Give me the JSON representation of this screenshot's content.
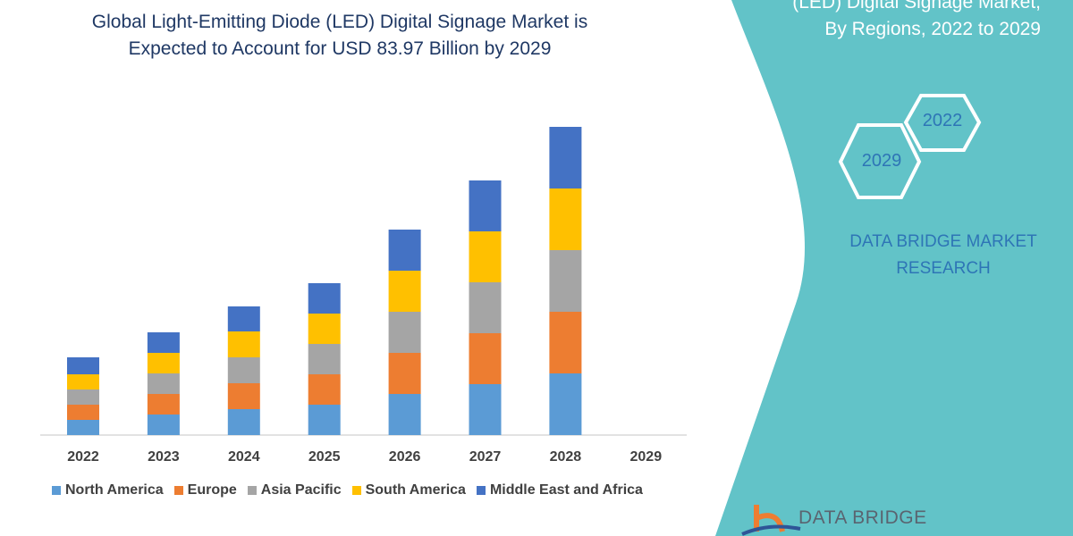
{
  "header": {
    "title_line1": "Global Light-Emitting Diode (LED) Digital Signage Market is",
    "title_line2": "Expected to Account for USD 83.97 Billion by 2029"
  },
  "side_panel": {
    "title_line1": "(LED) Digital Signage Market,",
    "title_line2": "By Regions, 2022 to 2029",
    "hex_top": "2022",
    "hex_bottom": "2029",
    "brand_line1": "DATA BRIDGE MARKET",
    "brand_line2": "RESEARCH",
    "logo_text": "DATA BRIDGE",
    "background_color": "#62C3C8"
  },
  "chart_data": {
    "type": "bar",
    "stacked": true,
    "title": "Global Light-Emitting Diode (LED) Digital Signage Market is Expected to Account for USD 83.97 Billion by 2029",
    "categories": [
      "2022",
      "2023",
      "2024",
      "2025",
      "2026",
      "2027",
      "2028",
      "2029"
    ],
    "series": [
      {
        "name": "North America",
        "color": "#5B9BD5",
        "values": [
          17,
          23,
          29,
          34,
          46,
          57,
          69,
          null
        ]
      },
      {
        "name": "Europe",
        "color": "#ED7D31",
        "values": [
          17,
          23,
          29,
          34,
          46,
          57,
          69,
          null
        ]
      },
      {
        "name": "Asia Pacific",
        "color": "#A5A5A5",
        "values": [
          17,
          23,
          29,
          34,
          46,
          57,
          69,
          null
        ]
      },
      {
        "name": "South America",
        "color": "#FFC000",
        "values": [
          17,
          23,
          29,
          34,
          46,
          57,
          69,
          null
        ]
      },
      {
        "name": "Middle East and Africa",
        "color": "#4472C4",
        "values": [
          19,
          23,
          28,
          34,
          46,
          57,
          69,
          null
        ]
      }
    ],
    "xlabel": "",
    "ylabel": "",
    "y_axis_shown": false,
    "grid": false,
    "legend_position": "bottom"
  }
}
